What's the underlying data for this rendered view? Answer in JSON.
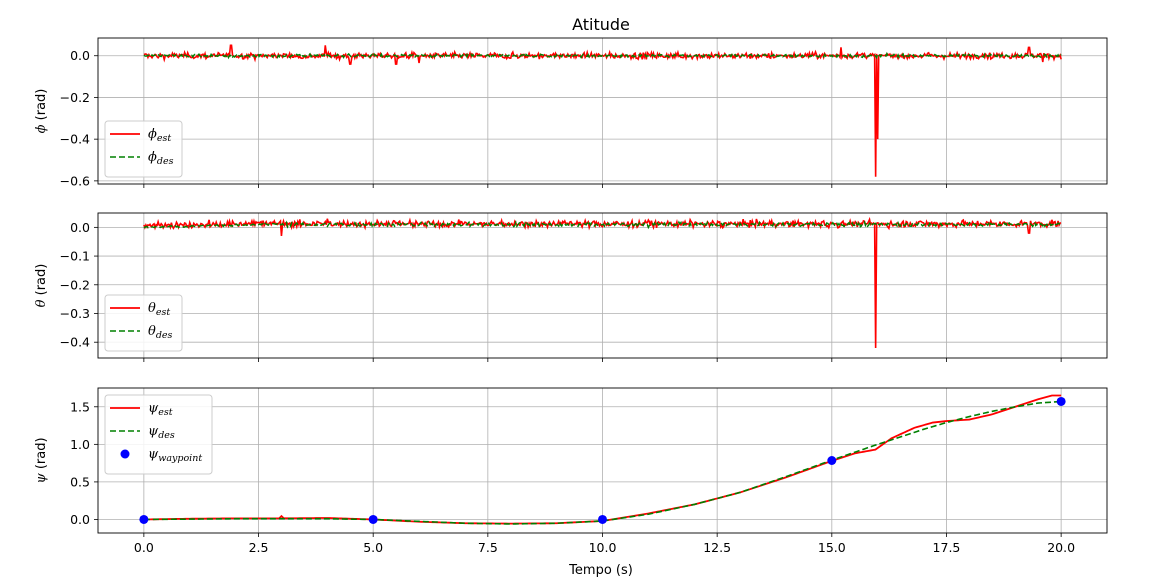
{
  "chart_data": {
    "title": "Atitude",
    "type": "line",
    "xlabel": "Tempo (s)",
    "xlim": [
      -1,
      21
    ],
    "xticks": [
      0,
      2.5,
      5,
      7.5,
      10,
      12.5,
      15,
      17.5,
      20
    ],
    "xtick_labels": [
      "0.0",
      "2.5",
      "5.0",
      "7.5",
      "10.0",
      "12.5",
      "15.0",
      "17.5",
      "20.0"
    ],
    "grid": true,
    "colors": {
      "est": "#ff0000",
      "des": "#008000",
      "waypoint": "#0000ff"
    },
    "subplots": [
      {
        "ylabel_symbol": "ϕ",
        "ylabel_unit": "(rad)",
        "ylim": [
          -0.615,
          0.085
        ],
        "yticks": [
          0.0,
          -0.2,
          -0.4,
          -0.6
        ],
        "ytick_labels": [
          "0.0",
          "−0.2",
          "−0.4",
          "−0.6"
        ],
        "legend_loc": "lower-left",
        "legend": [
          {
            "symbol": "ϕ",
            "sub": "est",
            "style": "solid"
          },
          {
            "symbol": "ϕ",
            "sub": "des",
            "style": "dashed"
          }
        ],
        "est_base": 0.0,
        "est_noise": 0.012,
        "des_base": 0.0,
        "des_noise": 0.006,
        "spikes": [
          {
            "t": 1.9,
            "v": 0.05
          },
          {
            "t": 3.95,
            "v": 0.05
          },
          {
            "t": 4.5,
            "v": -0.04
          },
          {
            "t": 5.5,
            "v": -0.04
          },
          {
            "t": 6.0,
            "v": -0.035
          },
          {
            "t": 15.2,
            "v": 0.04
          },
          {
            "t": 15.95,
            "v": -0.58
          },
          {
            "t": 16.0,
            "v": -0.4
          },
          {
            "t": 19.3,
            "v": 0.04
          },
          {
            "t": 19.6,
            "v": -0.03
          }
        ]
      },
      {
        "ylabel_symbol": "θ",
        "ylabel_unit": "(rad)",
        "ylim": [
          -0.455,
          0.05
        ],
        "yticks": [
          0.0,
          -0.1,
          -0.2,
          -0.3,
          -0.4
        ],
        "ytick_labels": [
          "0.0",
          "−0.1",
          "−0.2",
          "−0.3",
          "−0.4"
        ],
        "legend_loc": "lower-left",
        "legend": [
          {
            "symbol": "θ",
            "sub": "est",
            "style": "solid"
          },
          {
            "symbol": "θ",
            "sub": "des",
            "style": "dashed"
          }
        ],
        "est_base": 0.012,
        "est_noise": 0.01,
        "des_base": 0.01,
        "des_noise": 0.006,
        "spikes": [
          {
            "t": 3.0,
            "v": -0.03
          },
          {
            "t": 4.0,
            "v": 0.03
          },
          {
            "t": 15.95,
            "v": -0.42
          },
          {
            "t": 19.3,
            "v": -0.02
          }
        ]
      },
      {
        "ylabel_symbol": "ψ",
        "ylabel_unit": "(rad)",
        "ylim": [
          -0.18,
          1.75
        ],
        "yticks": [
          0.0,
          0.5,
          1.0,
          1.5
        ],
        "ytick_labels": [
          "0.0",
          "0.5",
          "1.0",
          "1.5"
        ],
        "legend_loc": "upper-left",
        "legend": [
          {
            "symbol": "ψ",
            "sub": "est",
            "style": "solid"
          },
          {
            "symbol": "ψ",
            "sub": "des",
            "style": "dashed"
          },
          {
            "symbol": "ψ",
            "sub": "waypoint",
            "style": "marker"
          }
        ],
        "est_points": [
          [
            0,
            0.0
          ],
          [
            1,
            0.01
          ],
          [
            2,
            0.015
          ],
          [
            3,
            0.015
          ],
          [
            4,
            0.02
          ],
          [
            5,
            0.0
          ],
          [
            6,
            -0.03
          ],
          [
            7,
            -0.05
          ],
          [
            8,
            -0.055
          ],
          [
            9,
            -0.05
          ],
          [
            10,
            -0.02
          ],
          [
            11,
            0.08
          ],
          [
            12,
            0.2
          ],
          [
            13,
            0.36
          ],
          [
            14,
            0.56
          ],
          [
            15,
            0.78
          ],
          [
            15.5,
            0.88
          ],
          [
            15.95,
            0.93
          ],
          [
            16.3,
            1.08
          ],
          [
            16.8,
            1.22
          ],
          [
            17.2,
            1.29
          ],
          [
            17.5,
            1.31
          ],
          [
            18,
            1.33
          ],
          [
            18.5,
            1.4
          ],
          [
            19,
            1.5
          ],
          [
            19.5,
            1.6
          ],
          [
            19.8,
            1.65
          ],
          [
            20,
            1.65
          ]
        ],
        "des_points": [
          [
            0,
            0.0
          ],
          [
            1,
            0.005
          ],
          [
            2,
            0.01
          ],
          [
            3,
            0.01
          ],
          [
            4,
            0.01
          ],
          [
            5,
            0.0
          ],
          [
            6,
            -0.025
          ],
          [
            7,
            -0.05
          ],
          [
            8,
            -0.06
          ],
          [
            9,
            -0.05
          ],
          [
            10,
            -0.02
          ],
          [
            11,
            0.07
          ],
          [
            12,
            0.2
          ],
          [
            13,
            0.36
          ],
          [
            14,
            0.57
          ],
          [
            15,
            0.79
          ],
          [
            16,
            1.0
          ],
          [
            16.5,
            1.1
          ],
          [
            17,
            1.2
          ],
          [
            17.5,
            1.29
          ],
          [
            18,
            1.37
          ],
          [
            18.5,
            1.44
          ],
          [
            19,
            1.5
          ],
          [
            19.5,
            1.55
          ],
          [
            20,
            1.57
          ]
        ],
        "waypoints": [
          [
            0,
            0.0
          ],
          [
            5,
            0.0
          ],
          [
            10,
            0.0
          ],
          [
            15,
            0.785
          ],
          [
            20,
            1.571
          ]
        ]
      }
    ]
  }
}
